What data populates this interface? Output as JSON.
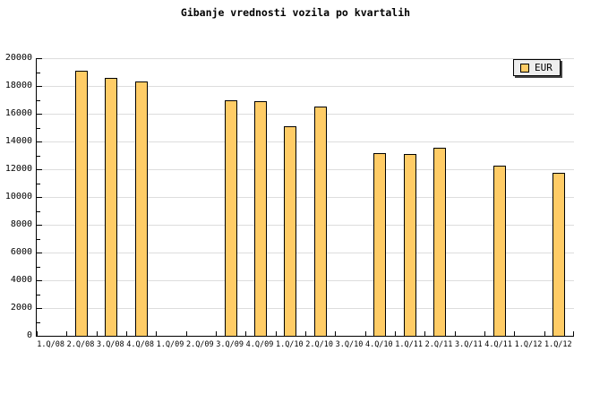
{
  "title": "Gibanje vrednosti vozila po kvartalih",
  "legend": {
    "label": "EUR"
  },
  "chart_data": {
    "type": "bar",
    "title": "Gibanje vrednosti vozila po kvartalih",
    "categories": [
      "1.Q/08",
      "2.Q/08",
      "3.Q/08",
      "4.Q/08",
      "1.Q/09",
      "2.Q/09",
      "3.Q/09",
      "4.Q/09",
      "1.Q/10",
      "2.Q/10",
      "3.Q/10",
      "4.Q/10",
      "1.Q/11",
      "2.Q/11",
      "3.Q/11",
      "4.Q/11",
      "1.Q/12",
      "1.Q/12"
    ],
    "series": [
      {
        "name": "EUR",
        "color": "#FFCC66",
        "values": [
          null,
          19100,
          18550,
          18350,
          null,
          null,
          16950,
          16900,
          15100,
          16500,
          null,
          13150,
          13100,
          13550,
          null,
          12250,
          null,
          11750
        ]
      }
    ],
    "ylim": [
      0,
      20000
    ],
    "yticks": [
      0,
      2000,
      4000,
      6000,
      8000,
      10000,
      12000,
      14000,
      16000,
      18000,
      20000
    ],
    "minor_ytick_step": 1000,
    "xlabel": "",
    "ylabel": "",
    "grid": true,
    "grid_color": "#DDDDDD",
    "axis_color": "#000000",
    "bar_border_color": "#000000",
    "background": "#FFFFFF",
    "legend_position": "top-right"
  }
}
